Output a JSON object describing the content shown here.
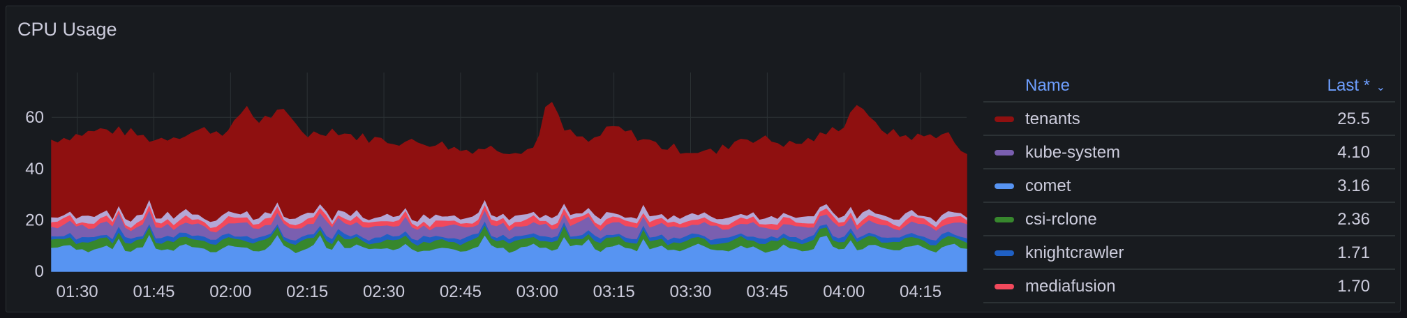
{
  "panel": {
    "title": "CPU Usage"
  },
  "legend": {
    "name_header": "Name",
    "last_header": "Last *",
    "sort_icon": "chevron-down-icon"
  },
  "chart_data": {
    "type": "area",
    "stacked": true,
    "title": "CPU Usage",
    "xlabel": "",
    "ylabel": "",
    "ylim": [
      0,
      80
    ],
    "yticks": [
      0,
      20,
      40,
      60
    ],
    "xticks": [
      "01:30",
      "01:45",
      "02:00",
      "02:15",
      "02:30",
      "02:45",
      "03:00",
      "03:15",
      "03:30",
      "03:45",
      "04:00",
      "04:15"
    ],
    "xlim": [
      "01:25",
      "04:24"
    ],
    "grid": true,
    "legend_position": "right",
    "series": [
      {
        "name": "tenants",
        "color": "#8f1010",
        "last": "25.5"
      },
      {
        "name": "kube-system",
        "color": "#7a5fb0",
        "last": "4.10"
      },
      {
        "name": "comet",
        "color": "#5794f2",
        "last": "3.16"
      },
      {
        "name": "csi-rclone",
        "color": "#37872d",
        "last": "2.36"
      },
      {
        "name": "knightcrawler",
        "color": "#1f60c4",
        "last": "1.71"
      },
      {
        "name": "mediafusion",
        "color": "#f2495c",
        "last": "1.70"
      }
    ],
    "total_profile": {
      "x": [
        "01:25",
        "01:30",
        "01:35",
        "01:40",
        "01:45",
        "01:50",
        "01:55",
        "02:00",
        "02:03",
        "02:05",
        "02:10",
        "02:15",
        "02:20",
        "02:25",
        "02:30",
        "02:35",
        "02:40",
        "02:45",
        "02:50",
        "02:55",
        "03:00",
        "03:02",
        "03:05",
        "03:10",
        "03:15",
        "03:20",
        "03:25",
        "03:30",
        "03:35",
        "03:40",
        "03:45",
        "03:50",
        "03:55",
        "04:00",
        "04:03",
        "04:05",
        "04:10",
        "04:15",
        "04:20",
        "04:24"
      ],
      "y": [
        51,
        53,
        55,
        54,
        51,
        53,
        55,
        54,
        65,
        58,
        62,
        53,
        55,
        52,
        51,
        50,
        50,
        47,
        48,
        47,
        48,
        69,
        55,
        50,
        56,
        52,
        48,
        47,
        46,
        52,
        51,
        49,
        52,
        57,
        67,
        58,
        53,
        52,
        54,
        44
      ]
    }
  }
}
